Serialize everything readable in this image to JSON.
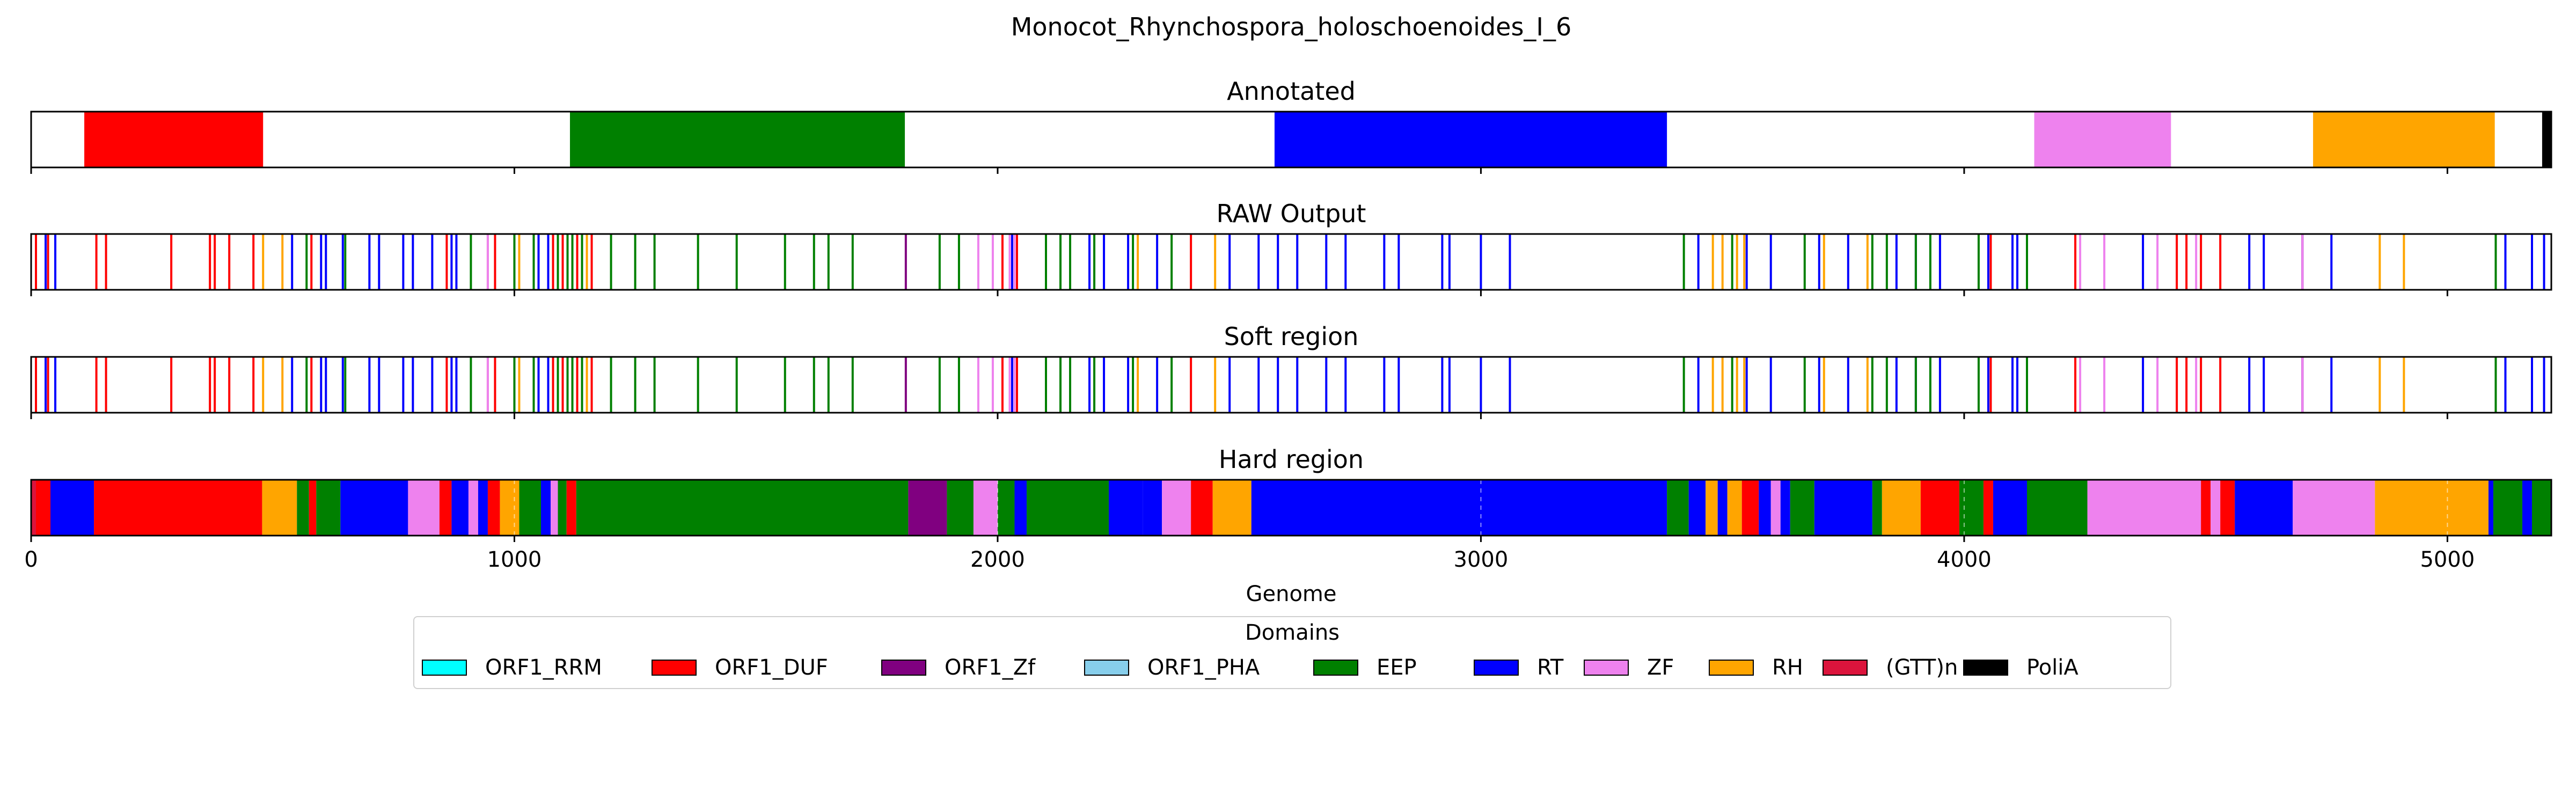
{
  "figure_title": "Monocot_Rhynchospora_holoschoenoides_I_6",
  "colors": {
    "ORF1_RRM": "#00ffff",
    "ORF1_DUF": "#ff0000",
    "ORF1_Zf": "#800080",
    "ORF1_PHA": "#87ceeb",
    "EEP": "#008000",
    "RT": "#0000ff",
    "ZF": "#ee82ee",
    "RH": "#ffa500",
    "(GTT)n": "#dc143c",
    "PoliA": "#000000"
  },
  "chart_data": {
    "type": "track",
    "xlabel": "Genome",
    "xlim": [
      0,
      5215
    ],
    "xticks": [
      0,
      1000,
      2000,
      3000,
      4000,
      5000
    ],
    "grid": "dashed vertical gridlines on Hard region track",
    "legend_title": "Domains",
    "legend_position": "bottom-center",
    "legend_entries": [
      "ORF1_RRM",
      "ORF1_DUF",
      "ORF1_Zf",
      "ORF1_PHA",
      "EEP",
      "RT",
      "ZF",
      "RH",
      "(GTT)n",
      "PoliA"
    ],
    "panels": [
      {
        "title": "Annotated",
        "kind": "segments",
        "segments": [
          {
            "start": 110,
            "end": 480,
            "domain": "ORF1_DUF"
          },
          {
            "start": 1115,
            "end": 1808,
            "domain": "EEP"
          },
          {
            "start": 2573,
            "end": 3385,
            "domain": "RT"
          },
          {
            "start": 4145,
            "end": 4428,
            "domain": "ZF"
          },
          {
            "start": 4722,
            "end": 5098,
            "domain": "RH"
          },
          {
            "start": 5196,
            "end": 5215,
            "domain": "PoliA"
          }
        ]
      },
      {
        "title": "RAW Output",
        "kind": "lines",
        "lines": [
          {
            "domain": "ORF1_DUF",
            "positions": [
              10,
              35,
              135,
              155,
              290,
              370,
              380,
              410,
              460,
              580,
              860,
              945,
              960,
              1080,
              1100,
              1130,
              1160,
              2010,
              2040,
              2400,
              4055,
              4230,
              4440,
              4460,
              4490,
              4530,
              4700
            ]
          },
          {
            "domain": "RT",
            "positions": [
              30,
              50,
              540,
              600,
              610,
              645,
              700,
              720,
              770,
              790,
              830,
              870,
              880,
              1050,
              1070,
              2030,
              2190,
              2220,
              2270,
              2330,
              2480,
              2540,
              2580,
              2620,
              2680,
              2720,
              2800,
              2830,
              2920,
              2935,
              3000,
              3060,
              3450,
              3550,
              3600,
              3700,
              3760,
              3860,
              3900,
              3950,
              4050,
              4100,
              4110,
              4370,
              4590,
              4620,
              4700,
              4760,
              5120,
              5175,
              5200
            ]
          },
          {
            "domain": "EEP",
            "positions": [
              570,
              650,
              910,
              1000,
              1040,
              1090,
              1110,
              1120,
              1140,
              1200,
              1250,
              1290,
              1380,
              1460,
              1560,
              1620,
              1650,
              1700,
              1880,
              1920,
              2100,
              2130,
              2150,
              2200,
              2280,
              2360,
              3420,
              3520,
              3670,
              3810,
              3840,
              3900,
              3930,
              4030,
              4130,
              5100
            ]
          },
          {
            "domain": "RH",
            "positions": [
              480,
              520,
              1010,
              1150,
              2290,
              2450,
              3480,
              3500,
              3530,
              3545,
              3710,
              3800,
              4860,
              4910
            ]
          },
          {
            "domain": "ZF",
            "positions": [
              945,
              1960,
              1990,
              2035,
              2025,
              4240,
              4290,
              4400,
              4480,
              4700
            ]
          },
          {
            "domain": "ORF1_Zf",
            "positions": [
              1810
            ]
          }
        ]
      },
      {
        "title": "Soft region",
        "kind": "lines",
        "lines": [
          {
            "domain": "ORF1_DUF",
            "positions": [
              10,
              35,
              135,
              155,
              290,
              370,
              380,
              410,
              460,
              580,
              860,
              945,
              960,
              1080,
              1100,
              1130,
              1160,
              2010,
              2040,
              2400,
              4055,
              4230,
              4440,
              4460,
              4490,
              4530,
              4700
            ]
          },
          {
            "domain": "RT",
            "positions": [
              30,
              50,
              540,
              600,
              610,
              645,
              700,
              720,
              770,
              790,
              830,
              870,
              880,
              1050,
              1070,
              2030,
              2190,
              2220,
              2270,
              2330,
              2480,
              2540,
              2580,
              2620,
              2680,
              2720,
              2800,
              2830,
              2920,
              2935,
              3000,
              3060,
              3450,
              3550,
              3600,
              3700,
              3760,
              3860,
              3900,
              3950,
              4050,
              4100,
              4110,
              4370,
              4590,
              4620,
              4700,
              4760,
              5120,
              5175,
              5200
            ]
          },
          {
            "domain": "EEP",
            "positions": [
              570,
              650,
              910,
              1000,
              1040,
              1090,
              1110,
              1120,
              1140,
              1200,
              1250,
              1290,
              1380,
              1460,
              1560,
              1620,
              1650,
              1700,
              1880,
              1920,
              2100,
              2130,
              2150,
              2200,
              2280,
              2360,
              3420,
              3520,
              3670,
              3810,
              3840,
              3900,
              3930,
              4030,
              4130,
              5100
            ]
          },
          {
            "domain": "RH",
            "positions": [
              480,
              520,
              1010,
              1150,
              2290,
              2450,
              3480,
              3500,
              3530,
              3545,
              3710,
              3800,
              4860,
              4910
            ]
          },
          {
            "domain": "ZF",
            "positions": [
              945,
              1960,
              1990,
              2035,
              2025,
              4240,
              4290,
              4400,
              4480,
              4700
            ]
          },
          {
            "domain": "ORF1_Zf",
            "positions": [
              1810
            ]
          }
        ]
      },
      {
        "title": "Hard region",
        "kind": "segments",
        "segments": [
          {
            "start": 0,
            "end": 10,
            "domain": "(GTT)n"
          },
          {
            "start": 10,
            "end": 40,
            "domain": "ORF1_DUF"
          },
          {
            "start": 40,
            "end": 130,
            "domain": "RT"
          },
          {
            "start": 130,
            "end": 478,
            "domain": "ORF1_DUF"
          },
          {
            "start": 478,
            "end": 550,
            "domain": "RH"
          },
          {
            "start": 550,
            "end": 575,
            "domain": "EEP"
          },
          {
            "start": 575,
            "end": 590,
            "domain": "ORF1_DUF"
          },
          {
            "start": 590,
            "end": 640,
            "domain": "EEP"
          },
          {
            "start": 640,
            "end": 780,
            "domain": "RT"
          },
          {
            "start": 780,
            "end": 845,
            "domain": "ZF"
          },
          {
            "start": 845,
            "end": 870,
            "domain": "ORF1_DUF"
          },
          {
            "start": 870,
            "end": 905,
            "domain": "RT"
          },
          {
            "start": 905,
            "end": 925,
            "domain": "ZF"
          },
          {
            "start": 925,
            "end": 945,
            "domain": "RT"
          },
          {
            "start": 945,
            "end": 970,
            "domain": "ORF1_DUF"
          },
          {
            "start": 970,
            "end": 1010,
            "domain": "RH"
          },
          {
            "start": 1010,
            "end": 1055,
            "domain": "EEP"
          },
          {
            "start": 1055,
            "end": 1075,
            "domain": "RT"
          },
          {
            "start": 1075,
            "end": 1090,
            "domain": "ZF"
          },
          {
            "start": 1090,
            "end": 1108,
            "domain": "EEP"
          },
          {
            "start": 1108,
            "end": 1128,
            "domain": "ORF1_DUF"
          },
          {
            "start": 1128,
            "end": 1815,
            "domain": "EEP"
          },
          {
            "start": 1815,
            "end": 1895,
            "domain": "ORF1_Zf"
          },
          {
            "start": 1895,
            "end": 1950,
            "domain": "EEP"
          },
          {
            "start": 1950,
            "end": 2000,
            "domain": "ZF"
          },
          {
            "start": 2000,
            "end": 2035,
            "domain": "EEP"
          },
          {
            "start": 2035,
            "end": 2060,
            "domain": "RT"
          },
          {
            "start": 2060,
            "end": 2230,
            "domain": "EEP"
          },
          {
            "start": 2230,
            "end": 2300,
            "domain": "RT"
          },
          {
            "start": 2300,
            "end": 2340,
            "domain": "RT"
          },
          {
            "start": 2340,
            "end": 2400,
            "domain": "ZF"
          },
          {
            "start": 2400,
            "end": 2445,
            "domain": "ORF1_DUF"
          },
          {
            "start": 2445,
            "end": 2525,
            "domain": "RH"
          },
          {
            "start": 2525,
            "end": 3385,
            "domain": "RT"
          },
          {
            "start": 3385,
            "end": 3430,
            "domain": "EEP"
          },
          {
            "start": 3430,
            "end": 3465,
            "domain": "RT"
          },
          {
            "start": 3465,
            "end": 3490,
            "domain": "RH"
          },
          {
            "start": 3490,
            "end": 3510,
            "domain": "RT"
          },
          {
            "start": 3510,
            "end": 3540,
            "domain": "RH"
          },
          {
            "start": 3540,
            "end": 3575,
            "domain": "ORF1_DUF"
          },
          {
            "start": 3575,
            "end": 3600,
            "domain": "RT"
          },
          {
            "start": 3600,
            "end": 3620,
            "domain": "ZF"
          },
          {
            "start": 3620,
            "end": 3640,
            "domain": "RT"
          },
          {
            "start": 3640,
            "end": 3690,
            "domain": "EEP"
          },
          {
            "start": 3690,
            "end": 3810,
            "domain": "RT"
          },
          {
            "start": 3810,
            "end": 3830,
            "domain": "EEP"
          },
          {
            "start": 3830,
            "end": 3910,
            "domain": "RH"
          },
          {
            "start": 3910,
            "end": 3990,
            "domain": "ORF1_DUF"
          },
          {
            "start": 3990,
            "end": 4040,
            "domain": "EEP"
          },
          {
            "start": 4040,
            "end": 4060,
            "domain": "ORF1_DUF"
          },
          {
            "start": 4060,
            "end": 4130,
            "domain": "RT"
          },
          {
            "start": 4130,
            "end": 4255,
            "domain": "EEP"
          },
          {
            "start": 4255,
            "end": 4490,
            "domain": "ZF"
          },
          {
            "start": 4490,
            "end": 4510,
            "domain": "ORF1_DUF"
          },
          {
            "start": 4510,
            "end": 4530,
            "domain": "ZF"
          },
          {
            "start": 4530,
            "end": 4560,
            "domain": "ORF1_DUF"
          },
          {
            "start": 4560,
            "end": 4680,
            "domain": "RT"
          },
          {
            "start": 4680,
            "end": 4850,
            "domain": "ZF"
          },
          {
            "start": 4850,
            "end": 5085,
            "domain": "RH"
          },
          {
            "start": 5085,
            "end": 5095,
            "domain": "RT"
          },
          {
            "start": 5095,
            "end": 5155,
            "domain": "EEP"
          },
          {
            "start": 5155,
            "end": 5175,
            "domain": "RT"
          },
          {
            "start": 5175,
            "end": 5215,
            "domain": "EEP"
          }
        ]
      }
    ]
  }
}
